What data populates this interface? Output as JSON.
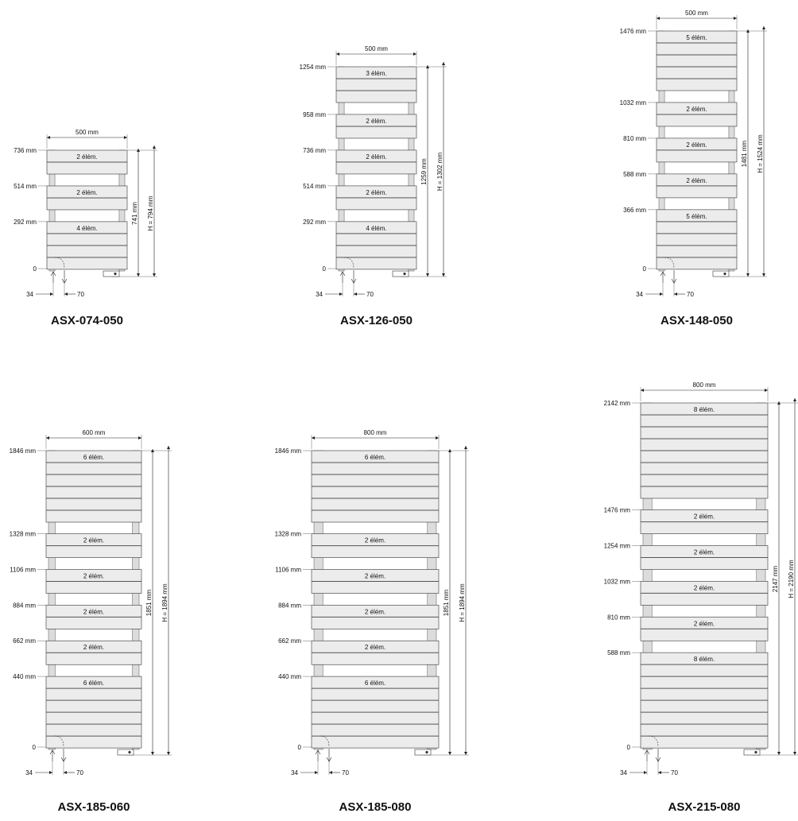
{
  "labels": {
    "zero": "0",
    "offset_left": "34",
    "offset_right": "70"
  },
  "models": [
    {
      "name": "ASX-074-050",
      "width_label": "500  mm",
      "inner_height": "741  mm",
      "total_height": "H = 794  mm",
      "levels": [
        {
          "mark": "736 mm",
          "count": "2 élém.",
          "n": 2
        },
        {
          "mark": "514 mm",
          "count": "2 élém.",
          "n": 2
        },
        {
          "mark": "292 mm",
          "count": "4 élém.",
          "n": 4
        }
      ]
    },
    {
      "name": "ASX-126-050",
      "width_label": "500  mm",
      "inner_height": "1259  mm",
      "total_height": "H = 1302  mm",
      "levels": [
        {
          "mark": "1254 mm",
          "count": "3 élém.",
          "n": 3
        },
        {
          "mark": "958 mm",
          "count": "2 élém.",
          "n": 2
        },
        {
          "mark": "736 mm",
          "count": "2 élém.",
          "n": 2
        },
        {
          "mark": "514 mm",
          "count": "2 élém.",
          "n": 2
        },
        {
          "mark": "292 mm",
          "count": "4 élém.",
          "n": 4
        }
      ]
    },
    {
      "name": "ASX-148-050",
      "width_label": "500  mm",
      "inner_height": "1481  mm",
      "total_height": "H = 1524  mm",
      "levels": [
        {
          "mark": "1476 mm",
          "count": "5 élém.",
          "n": 5
        },
        {
          "mark": "1032 mm",
          "count": "2 élém.",
          "n": 2
        },
        {
          "mark": "810 mm",
          "count": "2 élém.",
          "n": 2
        },
        {
          "mark": "588 mm",
          "count": "2 élém.",
          "n": 2
        },
        {
          "mark": "366 mm",
          "count": "5 élém.",
          "n": 5
        }
      ]
    },
    {
      "name": "ASX-185-060",
      "width_label": "600  mm",
      "inner_height": "1851  mm",
      "total_height": "H = 1894  mm",
      "levels": [
        {
          "mark": "1846 mm",
          "count": "6 élém.",
          "n": 6
        },
        {
          "mark": "1328 mm",
          "count": "2 élém.",
          "n": 2
        },
        {
          "mark": "1106 mm",
          "count": "2 élém.",
          "n": 2
        },
        {
          "mark": "884 mm",
          "count": "2 élém.",
          "n": 2
        },
        {
          "mark": "662 mm",
          "count": "2 élém.",
          "n": 2
        },
        {
          "mark": "440 mm",
          "count": "6 élém.",
          "n": 6
        }
      ]
    },
    {
      "name": "ASX-185-080",
      "width_label": "800  mm",
      "inner_height": "1851  mm",
      "total_height": "H = 1894  mm",
      "levels": [
        {
          "mark": "1846 mm",
          "count": "6 élém.",
          "n": 6
        },
        {
          "mark": "1328 mm",
          "count": "2 élém.",
          "n": 2
        },
        {
          "mark": "1106 mm",
          "count": "2 élém.",
          "n": 2
        },
        {
          "mark": "884 mm",
          "count": "2 élém.",
          "n": 2
        },
        {
          "mark": "662 mm",
          "count": "2 élém.",
          "n": 2
        },
        {
          "mark": "440 mm",
          "count": "6 élém.",
          "n": 6
        }
      ]
    },
    {
      "name": "ASX-215-080",
      "width_label": "800  mm",
      "inner_height": "2147  mm",
      "total_height": "H = 2190  mm",
      "levels": [
        {
          "mark": "2142 mm",
          "count": "8 élém.",
          "n": 8
        },
        {
          "mark": "1476 mm",
          "count": "2 élém.",
          "n": 2
        },
        {
          "mark": "1254 mm",
          "count": "2 élém.",
          "n": 2
        },
        {
          "mark": "1032 mm",
          "count": "2 élém.",
          "n": 2
        },
        {
          "mark": "810 mm",
          "count": "2 élém.",
          "n": 2
        },
        {
          "mark": "588 mm",
          "count": "8 élém.",
          "n": 8
        }
      ]
    }
  ]
}
